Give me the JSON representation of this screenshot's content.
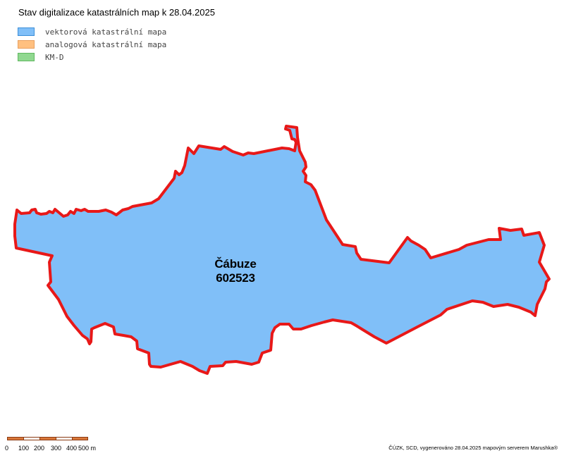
{
  "title": "Stav digitalizace katastrálních map k 28.04.2025",
  "legend": [
    {
      "label": "vektorová katastrální mapa",
      "fill": "#80bff8",
      "stroke": "#3d8fd8"
    },
    {
      "label": "analogová katastrální mapa",
      "fill": "#ffc080",
      "stroke": "#e8a060"
    },
    {
      "label": "KM-D",
      "fill": "#90d890",
      "stroke": "#60b860"
    }
  ],
  "map": {
    "area_fill": "#80bff8",
    "boundary_color": "#e81818",
    "area_name": "Čábuze",
    "area_code": "602523"
  },
  "scalebar": {
    "labels": [
      "0",
      "100",
      "200",
      "300",
      "400",
      "500 m"
    ],
    "colors": [
      "#d9773a",
      "#ffffff",
      "#d9773a",
      "#ffffff",
      "#d9773a"
    ]
  },
  "credit": "ČÚZK, SCD, vygenerováno 28.04.2025 mapovým serverem Marushka®"
}
